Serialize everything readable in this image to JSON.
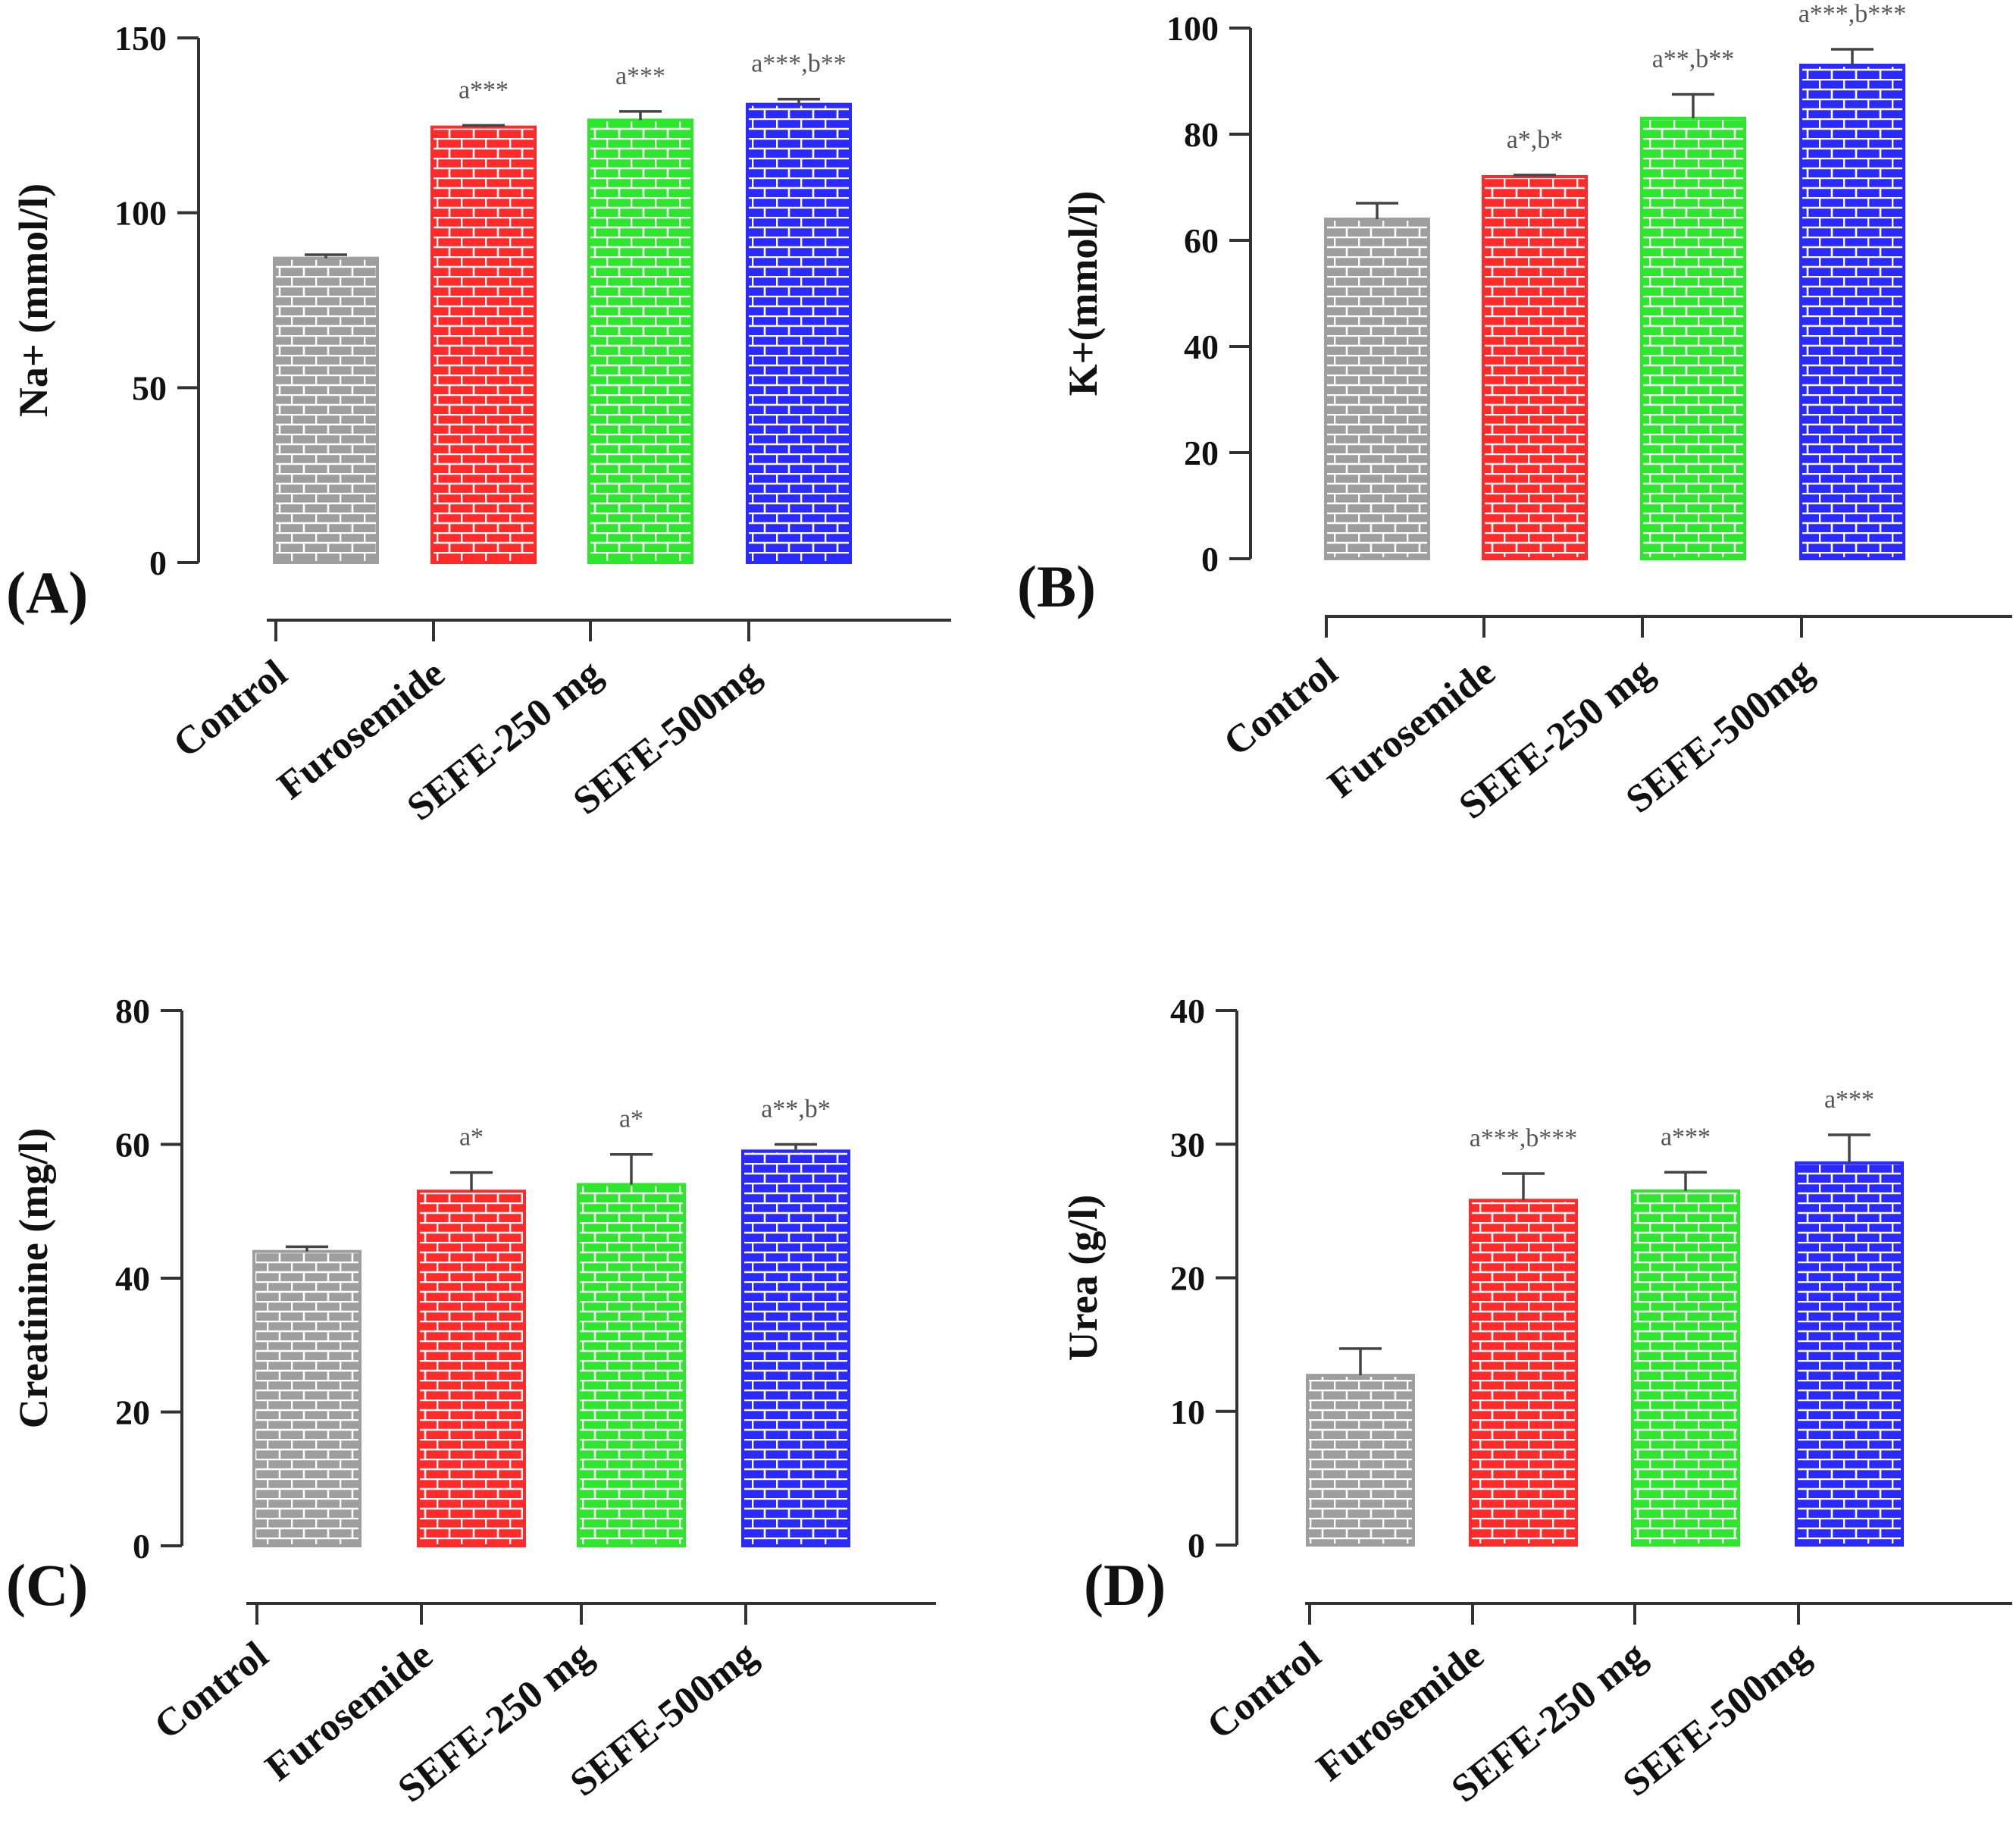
{
  "colors": {
    "Control": "#9e9e9e",
    "Furosemide": "#ff2a2a",
    "SEFE-250 mg": "#2ee62e",
    "SEFE-500mg": "#2a2aff"
  },
  "chart_data": [
    {
      "type": "bar",
      "panel": "(A)",
      "ylabel": "Na+ (mmol/l)",
      "categories": [
        "Control",
        "Furosemide",
        "SEFE-250 mg",
        "SEFE-500mg"
      ],
      "values": [
        87,
        124.5,
        126.5,
        131
      ],
      "errors": [
        1,
        0.5,
        2.5,
        1.5
      ],
      "annotations": [
        "",
        "a***",
        "a***",
        "a***,b**"
      ],
      "ylim": [
        0,
        150
      ],
      "yticks": [
        "0",
        "50",
        "100",
        "150"
      ]
    },
    {
      "type": "bar",
      "panel": "(B)",
      "ylabel": "K+(mmol/l)",
      "categories": [
        "Control",
        "Furosemide",
        "SEFE-250 mg",
        "SEFE-500mg"
      ],
      "values": [
        64,
        72,
        83,
        93
      ],
      "errors": [
        3,
        0.3,
        4.5,
        3
      ],
      "annotations": [
        "",
        "a*,b*",
        "a**,b**",
        "a***,b***"
      ],
      "ylim": [
        0,
        100
      ],
      "yticks": [
        "0",
        "20",
        "40",
        "60",
        "80",
        "100"
      ]
    },
    {
      "type": "bar",
      "panel": "(C)",
      "ylabel": "Creatinine (mg/l)",
      "categories": [
        "Control",
        "Furosemide",
        "SEFE-250 mg",
        "SEFE-500mg"
      ],
      "values": [
        44,
        53,
        54,
        59
      ],
      "errors": [
        0.7,
        2.8,
        4.5,
        1
      ],
      "annotations": [
        "",
        "a*",
        "a*",
        "a**,b*"
      ],
      "ylim": [
        0,
        80
      ],
      "yticks": [
        "0",
        "20",
        "40",
        "60",
        "80"
      ]
    },
    {
      "type": "bar",
      "panel": "(D)",
      "ylabel": "Urea (g/l)",
      "categories": [
        "Control",
        "Furosemide",
        "SEFE-250 mg",
        "SEFE-500mg"
      ],
      "values": [
        12.7,
        25.8,
        26.5,
        28.6
      ],
      "errors": [
        2,
        2,
        1.4,
        2.1
      ],
      "annotations": [
        "",
        "a***,b***",
        "a***",
        "a***"
      ],
      "ylim": [
        0,
        40
      ],
      "yticks": [
        "0",
        "10",
        "20",
        "30",
        "40"
      ]
    }
  ]
}
